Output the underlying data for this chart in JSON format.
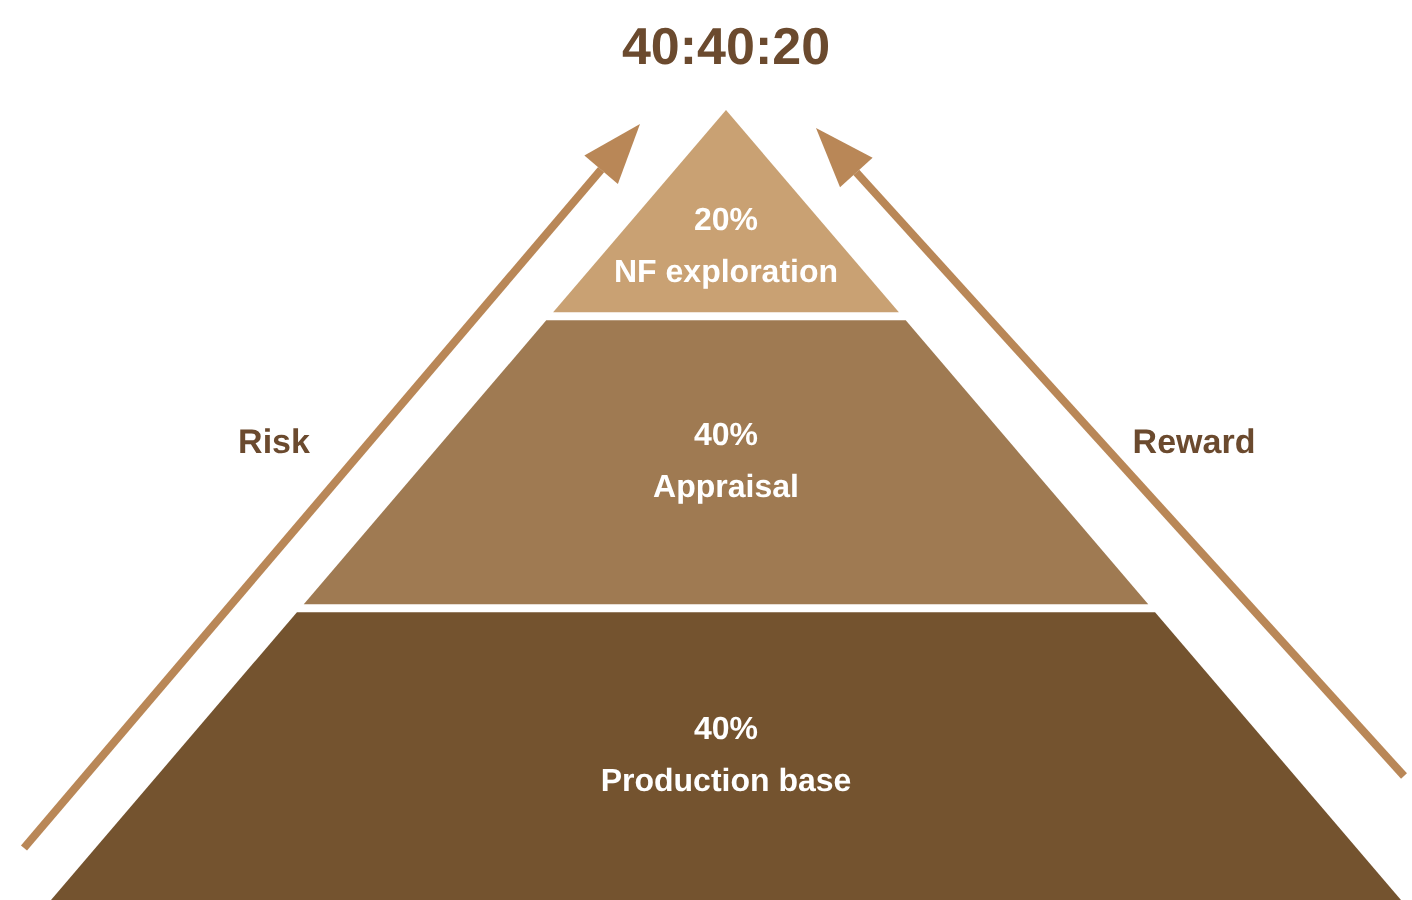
{
  "chart_data": {
    "type": "other",
    "title": "40:40:20",
    "categories": [
      "NF exploration",
      "Appraisal",
      "Production base"
    ],
    "values": [
      20,
      40,
      40
    ],
    "value_labels": [
      "20%",
      "40%",
      "40%"
    ],
    "colors": [
      "#c9a173",
      "#9f7a52",
      "#74532f"
    ],
    "annotations": [
      "Risk",
      "Reward"
    ]
  }
}
